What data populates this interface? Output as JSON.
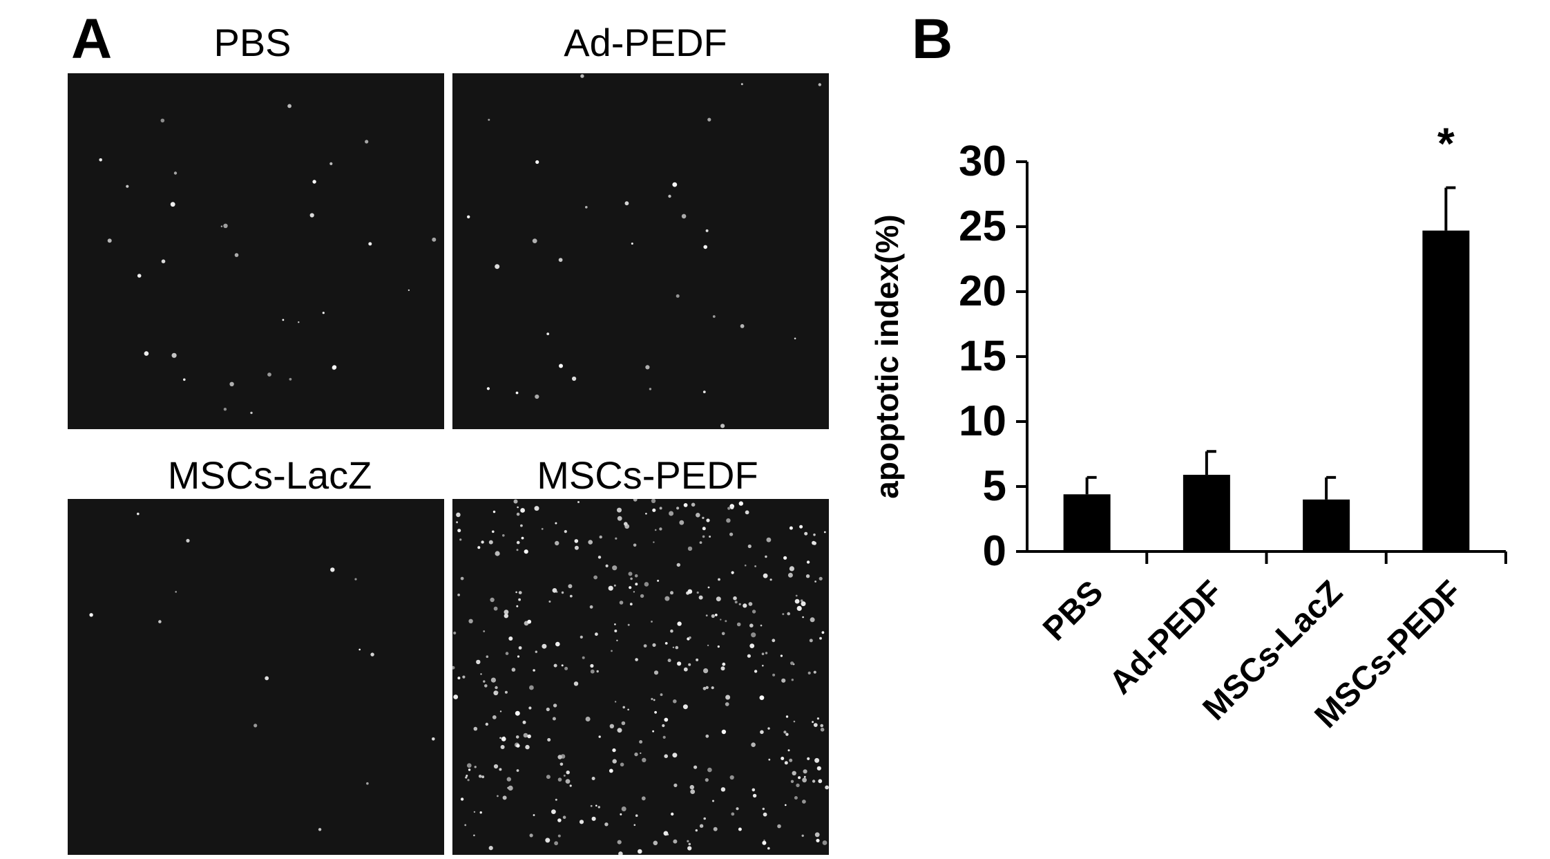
{
  "panels": {
    "a_label": "A",
    "b_label": "B"
  },
  "micrographs": [
    {
      "label": "PBS",
      "density": "low"
    },
    {
      "label": "Ad-PEDF",
      "density": "low"
    },
    {
      "label": "MSCs-LacZ",
      "density": "very-low"
    },
    {
      "label": "MSCs-PEDF",
      "density": "high"
    }
  ],
  "colors": {
    "micrograph_background": "#141414",
    "signal": "#e8e8e8",
    "bar": "#000000"
  },
  "chart_data": {
    "type": "bar",
    "categories": [
      "PBS",
      "Ad-PEDF",
      "MSCs-LacZ",
      "MSCs-PEDF"
    ],
    "values": [
      4.4,
      5.9,
      4.0,
      24.7
    ],
    "errors": [
      1.3,
      1.8,
      1.7,
      3.3
    ],
    "ylabel": "apoptotic index(%)",
    "ylim": [
      0,
      30
    ],
    "yticks": [
      0,
      5,
      10,
      15,
      20,
      25,
      30
    ],
    "annotations": [
      {
        "category": "MSCs-PEDF",
        "text": "*"
      }
    ],
    "grid": false
  }
}
